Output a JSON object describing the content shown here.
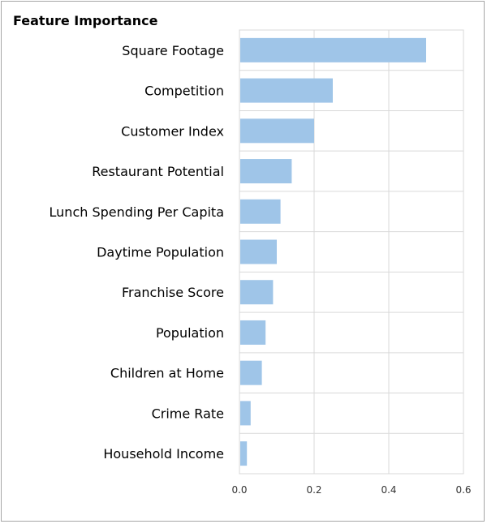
{
  "chart_data": {
    "type": "bar",
    "orientation": "horizontal",
    "title": "Feature Importance",
    "categories": [
      "Square Footage",
      "Competition",
      "Customer Index",
      "Restaurant Potential",
      "Lunch Spending Per Capita",
      "Daytime Population",
      "Franchise Score",
      "Population",
      "Children at Home",
      "Crime Rate",
      "Household Income"
    ],
    "values": [
      0.5,
      0.25,
      0.2,
      0.14,
      0.11,
      0.1,
      0.09,
      0.07,
      0.06,
      0.03,
      0.02
    ],
    "xlim": [
      0,
      0.6
    ],
    "xticks": [
      0.0,
      0.2,
      0.4,
      0.6
    ],
    "xtick_labels": [
      "0.0",
      "0.2",
      "0.4",
      "0.6"
    ],
    "xlabel": "",
    "ylabel": "",
    "grid": true,
    "bar_color": "#9fc5e8",
    "grid_color": "#d9d9d9"
  }
}
